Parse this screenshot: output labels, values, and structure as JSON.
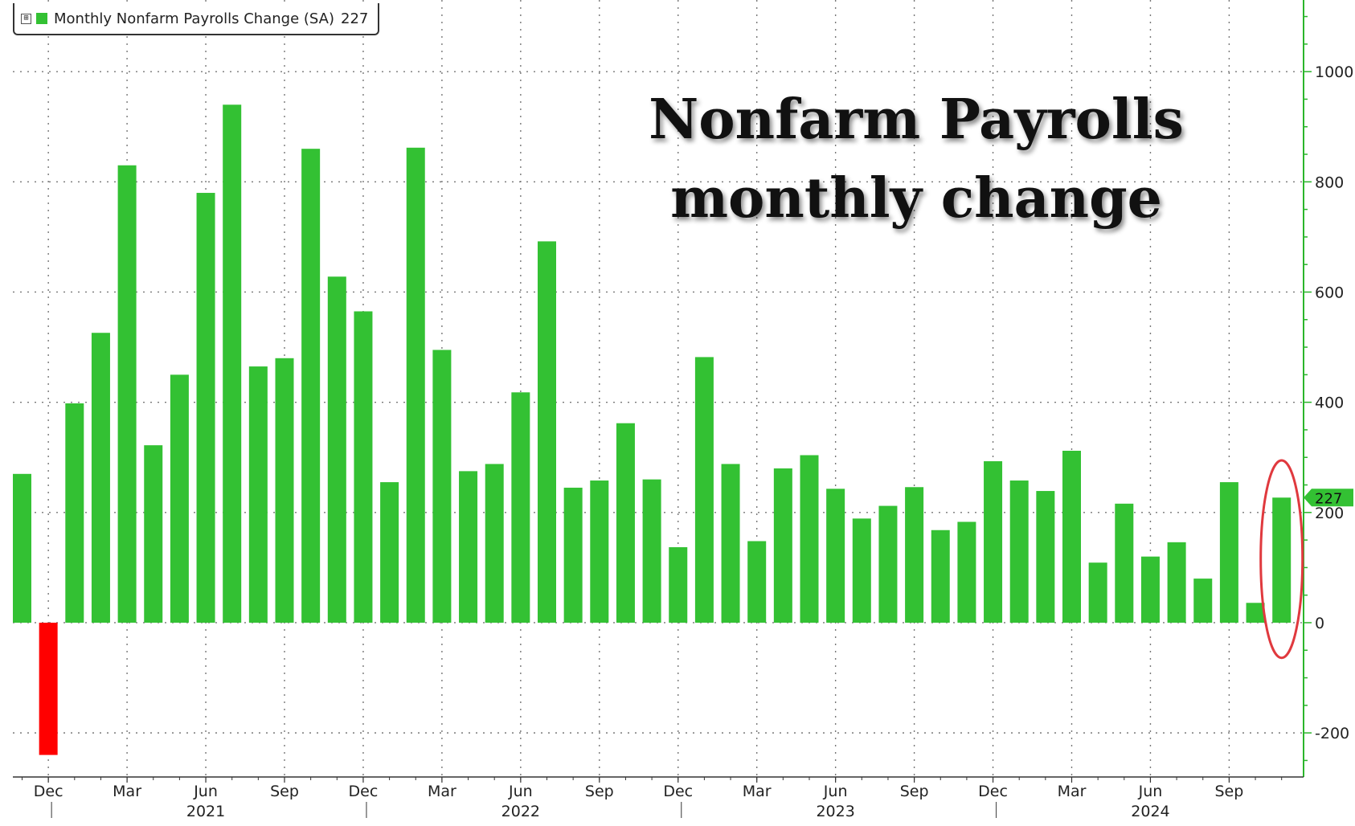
{
  "chart_data": {
    "type": "bar",
    "title_lines": [
      "Nonfarm Payrolls",
      "monthly change"
    ],
    "legend": {
      "label": "Monthly Nonfarm Payrolls Change (SA)",
      "value": "227",
      "toggle": "⊞"
    },
    "last_value_label": "227",
    "colors": {
      "positive": "#33c133",
      "negative": "#ff0000",
      "highlight": "#e0393e",
      "axis": "#2bb52b"
    },
    "y_axis": {
      "min": -280,
      "max": 1130,
      "ticks": [
        -200,
        0,
        200,
        400,
        600,
        800,
        1000
      ],
      "side": "right"
    },
    "grid": true,
    "x_month_ticks": [
      {
        "index": 1,
        "label": "Dec"
      },
      {
        "index": 4,
        "label": "Mar"
      },
      {
        "index": 7,
        "label": "Jun"
      },
      {
        "index": 10,
        "label": "Sep"
      },
      {
        "index": 13,
        "label": "Dec"
      },
      {
        "index": 16,
        "label": "Mar"
      },
      {
        "index": 19,
        "label": "Jun"
      },
      {
        "index": 22,
        "label": "Sep"
      },
      {
        "index": 25,
        "label": "Dec"
      },
      {
        "index": 28,
        "label": "Mar"
      },
      {
        "index": 31,
        "label": "Jun"
      },
      {
        "index": 34,
        "label": "Sep"
      },
      {
        "index": 37,
        "label": "Dec"
      },
      {
        "index": 40,
        "label": "Mar"
      },
      {
        "index": 43,
        "label": "Jun"
      },
      {
        "index": 46,
        "label": "Sep"
      }
    ],
    "x_year_labels": [
      {
        "index": 7,
        "label": "2021"
      },
      {
        "index": 19,
        "label": "2022"
      },
      {
        "index": 31,
        "label": "2023"
      },
      {
        "index": 43,
        "label": "2024"
      }
    ],
    "year_separators": [
      1.5,
      13.5,
      25.5,
      37.5
    ],
    "categories": [
      "Nov 2020",
      "Dec 2020",
      "Jan 2021",
      "Feb 2021",
      "Mar 2021",
      "Apr 2021",
      "May 2021",
      "Jun 2021",
      "Jul 2021",
      "Aug 2021",
      "Sep 2021",
      "Oct 2021",
      "Nov 2021",
      "Dec 2021",
      "Jan 2022",
      "Feb 2022",
      "Mar 2022",
      "Apr 2022",
      "May 2022",
      "Jun 2022",
      "Jul 2022",
      "Aug 2022",
      "Sep 2022",
      "Oct 2022",
      "Nov 2022",
      "Dec 2022",
      "Jan 2023",
      "Feb 2023",
      "Mar 2023",
      "Apr 2023",
      "May 2023",
      "Jun 2023",
      "Jul 2023",
      "Aug 2023",
      "Sep 2023",
      "Oct 2023",
      "Nov 2023",
      "Dec 2023",
      "Jan 2024",
      "Feb 2024",
      "Mar 2024",
      "Apr 2024",
      "May 2024",
      "Jun 2024",
      "Jul 2024",
      "Aug 2024",
      "Sep 2024",
      "Oct 2024",
      "Nov 2024"
    ],
    "values": [
      270,
      -240,
      398,
      526,
      830,
      322,
      450,
      780,
      940,
      465,
      480,
      860,
      628,
      565,
      255,
      862,
      495,
      275,
      288,
      418,
      692,
      245,
      258,
      362,
      260,
      137,
      482,
      288,
      148,
      280,
      304,
      243,
      189,
      212,
      246,
      168,
      183,
      293,
      258,
      239,
      312,
      109,
      216,
      120,
      146,
      80,
      255,
      36,
      227
    ],
    "highlight_index": 48
  }
}
